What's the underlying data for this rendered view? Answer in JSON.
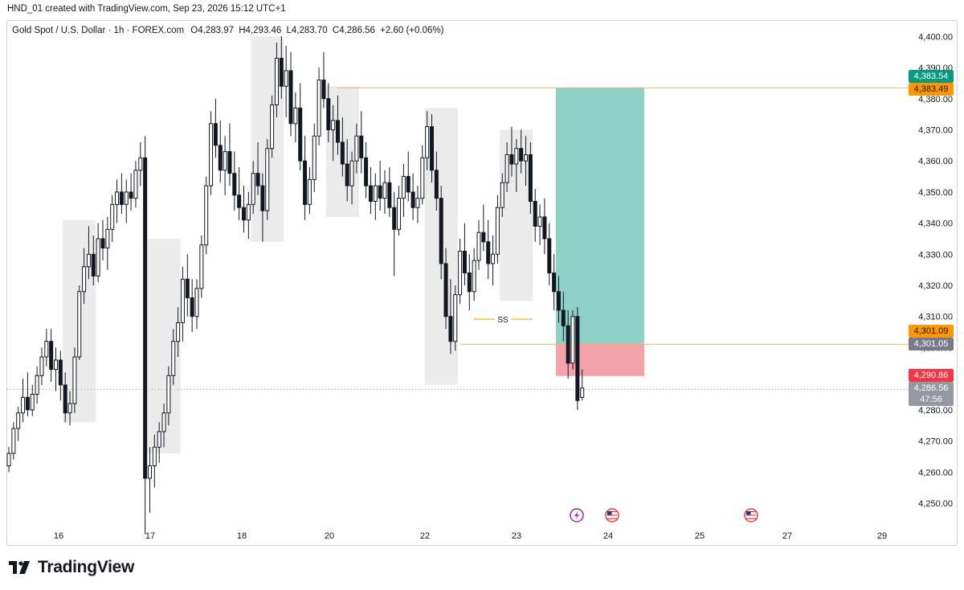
{
  "header": {
    "caption": "HND_01 created with TradingView.com, Sep 23, 2026 15:12 UTC+1"
  },
  "legend": {
    "symbol": "Gold Spot / U.S. Dollar · 1h · FOREX.com",
    "open_label": "O",
    "open": "4,283.97",
    "high_label": "H",
    "high": "4,293.46",
    "low_label": "L",
    "low": "4,283.70",
    "close_label": "C",
    "close": "4,286.56",
    "change": "+2.60 (+0.06%)"
  },
  "brand": {
    "name": "TradingView",
    "logo_icon": "tradingview-logo-icon"
  },
  "colors": {
    "candle": "#131722",
    "zone": "#ebebeb",
    "target": "#8fd0c4",
    "stop": "#f5a3ab",
    "target_tag": "#089981",
    "entry_tag": "#ff9800",
    "stop_tag": "#f23645",
    "current_tag": "#9598a1",
    "line_orange": "#f4b26a",
    "grid": "#d1d4dc"
  },
  "price_tags": {
    "target": "4,383.54",
    "entry_line_top": "4,383.49",
    "entry": "4,301.09",
    "entry_low": "4,301.05",
    "stop": "4,290.86",
    "current": "4,286.56",
    "countdown": "47:56"
  },
  "annotation": {
    "label": "SS"
  },
  "events": [
    {
      "icon": "lightning-event-icon"
    },
    {
      "icon": "us-flag-event-icon"
    },
    {
      "icon": "us-flag-event-icon"
    }
  ],
  "chart_data": {
    "type": "candlestick",
    "title": "Gold Spot / U.S. Dollar",
    "xlabel": "",
    "ylabel": "",
    "y_ticks": [
      4250,
      4260,
      4270,
      4280,
      4290,
      4300,
      4310,
      4320,
      4330,
      4340,
      4350,
      4360,
      4370,
      4380,
      4390,
      4400
    ],
    "y_tick_labels": [
      "4,250.00",
      "4,260.00",
      "4,270.00",
      "4,280.00",
      "4,290.00",
      "4,300.00",
      "4,310.00",
      "4,320.00",
      "4,330.00",
      "4,340.00",
      "4,350.00",
      "4,360.00",
      "4,370.00",
      "4,380.00",
      "4,390.00",
      "4,400.00"
    ],
    "x_tick_labels": [
      "16",
      "17",
      "18",
      "20",
      "22",
      "23",
      "24",
      "25",
      "27",
      "29"
    ],
    "ylim": [
      4242.5,
      4405
    ],
    "candles": [
      [
        4262,
        4268,
        4260,
        4266
      ],
      [
        4266,
        4276,
        4264,
        4274
      ],
      [
        4274,
        4281,
        4270,
        4279
      ],
      [
        4279,
        4290,
        4276,
        4284
      ],
      [
        4284,
        4292,
        4278,
        4280
      ],
      [
        4280,
        4288,
        4278,
        4285
      ],
      [
        4285,
        4294,
        4282,
        4291
      ],
      [
        4291,
        4300,
        4288,
        4297
      ],
      [
        4297,
        4306,
        4294,
        4302
      ],
      [
        4302,
        4306,
        4289,
        4293
      ],
      [
        4293,
        4300,
        4286,
        4296
      ],
      [
        4296,
        4299,
        4283,
        4288
      ],
      [
        4288,
        4292,
        4276,
        4279
      ],
      [
        4279,
        4286,
        4275,
        4282
      ],
      [
        4282,
        4300,
        4279,
        4297
      ],
      [
        4297,
        4320,
        4296,
        4318
      ],
      [
        4318,
        4332,
        4314,
        4326
      ],
      [
        4326,
        4339,
        4322,
        4330
      ],
      [
        4330,
        4336,
        4320,
        4323
      ],
      [
        4323,
        4340,
        4321,
        4335
      ],
      [
        4335,
        4341,
        4328,
        4332
      ],
      [
        4332,
        4342,
        4325,
        4338
      ],
      [
        4338,
        4349,
        4334,
        4346
      ],
      [
        4346,
        4354,
        4340,
        4350
      ],
      [
        4350,
        4356,
        4343,
        4346
      ],
      [
        4346,
        4354,
        4340,
        4350
      ],
      [
        4350,
        4356,
        4344,
        4348
      ],
      [
        4348,
        4360,
        4345,
        4357
      ],
      [
        4357,
        4366,
        4352,
        4361
      ],
      [
        4361,
        4368,
        4240,
        4258
      ],
      [
        4258,
        4268,
        4247,
        4262
      ],
      [
        4262,
        4272,
        4255,
        4268
      ],
      [
        4268,
        4276,
        4263,
        4273
      ],
      [
        4273,
        4282,
        4268,
        4279
      ],
      [
        4279,
        4294,
        4275,
        4291
      ],
      [
        4291,
        4306,
        4288,
        4302
      ],
      [
        4302,
        4313,
        4297,
        4308
      ],
      [
        4308,
        4326,
        4302,
        4322
      ],
      [
        4322,
        4330,
        4310,
        4316
      ],
      [
        4316,
        4322,
        4305,
        4310
      ],
      [
        4310,
        4322,
        4306,
        4319
      ],
      [
        4319,
        4336,
        4316,
        4333
      ],
      [
        4333,
        4355,
        4330,
        4352
      ],
      [
        4352,
        4376,
        4349,
        4372
      ],
      [
        4372,
        4380,
        4361,
        4365
      ],
      [
        4365,
        4373,
        4353,
        4357
      ],
      [
        4357,
        4368,
        4349,
        4363
      ],
      [
        4363,
        4372,
        4352,
        4356
      ],
      [
        4356,
        4363,
        4344,
        4349
      ],
      [
        4349,
        4358,
        4341,
        4345
      ],
      [
        4345,
        4352,
        4337,
        4341
      ],
      [
        4341,
        4350,
        4335,
        4346
      ],
      [
        4346,
        4360,
        4343,
        4356
      ],
      [
        4356,
        4366,
        4349,
        4352
      ],
      [
        4352,
        4356,
        4334,
        4344
      ],
      [
        4344,
        4367,
        4341,
        4364
      ],
      [
        4364,
        4381,
        4361,
        4378
      ],
      [
        4378,
        4398,
        4374,
        4393
      ],
      [
        4393,
        4400,
        4380,
        4384
      ],
      [
        4384,
        4397,
        4374,
        4389
      ],
      [
        4389,
        4395,
        4368,
        4372
      ],
      [
        4372,
        4382,
        4366,
        4377
      ],
      [
        4377,
        4385,
        4357,
        4360
      ],
      [
        4360,
        4368,
        4341,
        4346
      ],
      [
        4346,
        4358,
        4343,
        4354
      ],
      [
        4354,
        4372,
        4350,
        4368
      ],
      [
        4368,
        4390,
        4365,
        4386
      ],
      [
        4386,
        4395,
        4377,
        4380
      ],
      [
        4380,
        4385,
        4366,
        4370
      ],
      [
        4370,
        4378,
        4360,
        4373
      ],
      [
        4373,
        4381,
        4362,
        4366
      ],
      [
        4366,
        4374,
        4355,
        4359
      ],
      [
        4359,
        4367,
        4347,
        4352
      ],
      [
        4352,
        4363,
        4346,
        4360
      ],
      [
        4360,
        4372,
        4356,
        4368
      ],
      [
        4368,
        4376,
        4356,
        4361
      ],
      [
        4361,
        4366,
        4348,
        4352
      ],
      [
        4352,
        4358,
        4343,
        4347
      ],
      [
        4347,
        4356,
        4341,
        4352
      ],
      [
        4352,
        4360,
        4344,
        4348
      ],
      [
        4348,
        4357,
        4343,
        4353
      ],
      [
        4353,
        4358,
        4342,
        4345
      ],
      [
        4345,
        4350,
        4323,
        4338
      ],
      [
        4338,
        4352,
        4336,
        4348
      ],
      [
        4348,
        4359,
        4342,
        4355
      ],
      [
        4355,
        4363,
        4347,
        4350
      ],
      [
        4350,
        4356,
        4341,
        4345
      ],
      [
        4345,
        4352,
        4340,
        4348
      ],
      [
        4348,
        4365,
        4346,
        4361
      ],
      [
        4361,
        4376,
        4357,
        4371
      ],
      [
        4371,
        4375,
        4353,
        4357
      ],
      [
        4357,
        4363,
        4344,
        4348
      ],
      [
        4348,
        4352,
        4322,
        4327
      ],
      [
        4327,
        4332,
        4306,
        4310
      ],
      [
        4310,
        4322,
        4298,
        4302
      ],
      [
        4302,
        4320,
        4299,
        4317
      ],
      [
        4317,
        4335,
        4314,
        4331
      ],
      [
        4331,
        4340,
        4320,
        4324
      ],
      [
        4324,
        4330,
        4312,
        4318
      ],
      [
        4318,
        4332,
        4315,
        4328
      ],
      [
        4328,
        4341,
        4325,
        4337
      ],
      [
        4337,
        4346,
        4331,
        4334
      ],
      [
        4334,
        4341,
        4322,
        4327
      ],
      [
        4327,
        4336,
        4320,
        4330
      ],
      [
        4330,
        4349,
        4327,
        4345
      ],
      [
        4345,
        4356,
        4342,
        4353
      ],
      [
        4353,
        4366,
        4350,
        4362
      ],
      [
        4362,
        4371,
        4355,
        4359
      ],
      [
        4359,
        4367,
        4350,
        4364
      ],
      [
        4364,
        4370,
        4356,
        4360
      ],
      [
        4360,
        4368,
        4352,
        4362
      ],
      [
        4362,
        4366,
        4343,
        4347
      ],
      [
        4347,
        4351,
        4334,
        4339
      ],
      [
        4339,
        4346,
        4333,
        4342
      ],
      [
        4342,
        4348,
        4330,
        4335
      ],
      [
        4335,
        4340,
        4320,
        4324
      ],
      [
        4324,
        4330,
        4312,
        4318
      ],
      [
        4318,
        4323,
        4308,
        4312
      ],
      [
        4312,
        4318,
        4302,
        4307
      ],
      [
        4307,
        4312,
        4290,
        4295
      ],
      [
        4295,
        4312,
        4293,
        4310
      ],
      [
        4310,
        4313,
        4280,
        4283
      ],
      [
        4284,
        4293,
        4283,
        4287
      ]
    ],
    "zones": [
      {
        "from": 12,
        "to": 18,
        "low": 4276,
        "high": 4341
      },
      {
        "from": 30,
        "to": 36,
        "low": 4266,
        "high": 4335
      },
      {
        "from": 52,
        "to": 58,
        "low": 4334,
        "high": 4400
      },
      {
        "from": 68,
        "to": 74,
        "low": 4342,
        "high": 4384
      },
      {
        "from": 89,
        "to": 95,
        "low": 4288,
        "high": 4377
      },
      {
        "from": 105,
        "to": 111,
        "low": 4315,
        "high": 4370
      }
    ],
    "position": {
      "type": "short",
      "target": 4383.54,
      "entry": 4301.09,
      "stop": 4290.86,
      "horizontal_line": 4383.49
    },
    "ss_level": 4308,
    "current_price": 4286.56
  }
}
